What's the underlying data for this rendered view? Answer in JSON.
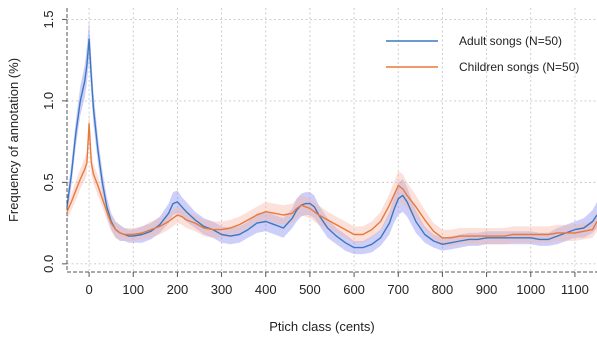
{
  "chart_data": {
    "type": "line",
    "title": "",
    "xlabel": "Ptich class (cents)",
    "ylabel": "Frequency of annotation (%)",
    "xlim": [
      -50,
      1150
    ],
    "ylim": [
      -0.05,
      1.57
    ],
    "x_ticks": [
      0,
      100,
      200,
      300,
      400,
      500,
      600,
      700,
      800,
      900,
      1000,
      1100
    ],
    "y_ticks": [
      0.0,
      0.5,
      1.0,
      1.5
    ],
    "y_tick_labels": [
      "0.0",
      "0.5",
      "1.0",
      "1.5"
    ],
    "grid": true,
    "legend_position": "top-right",
    "x": [
      -50,
      -40,
      -30,
      -20,
      -10,
      -5,
      0,
      5,
      10,
      20,
      30,
      40,
      50,
      60,
      70,
      80,
      90,
      100,
      120,
      140,
      160,
      180,
      190,
      200,
      210,
      220,
      240,
      260,
      280,
      300,
      320,
      340,
      360,
      380,
      400,
      420,
      440,
      460,
      470,
      480,
      490,
      500,
      510,
      520,
      540,
      560,
      580,
      600,
      620,
      640,
      660,
      680,
      690,
      700,
      710,
      720,
      740,
      760,
      780,
      800,
      820,
      840,
      860,
      880,
      900,
      920,
      940,
      960,
      980,
      1000,
      1020,
      1040,
      1060,
      1080,
      1100,
      1120,
      1140,
      1150
    ],
    "series": [
      {
        "name": "Adult songs (N=50)",
        "color": "#3a78c2",
        "band_color": "#8a8cf0",
        "values": [
          0.35,
          0.55,
          0.8,
          1.0,
          1.12,
          1.22,
          1.38,
          1.15,
          0.95,
          0.7,
          0.5,
          0.35,
          0.26,
          0.21,
          0.19,
          0.18,
          0.17,
          0.17,
          0.18,
          0.2,
          0.24,
          0.31,
          0.37,
          0.38,
          0.35,
          0.32,
          0.27,
          0.23,
          0.21,
          0.18,
          0.17,
          0.18,
          0.21,
          0.25,
          0.26,
          0.24,
          0.22,
          0.28,
          0.33,
          0.36,
          0.37,
          0.37,
          0.35,
          0.3,
          0.22,
          0.17,
          0.13,
          0.1,
          0.1,
          0.12,
          0.16,
          0.25,
          0.33,
          0.4,
          0.42,
          0.38,
          0.26,
          0.18,
          0.14,
          0.12,
          0.13,
          0.14,
          0.15,
          0.15,
          0.16,
          0.16,
          0.16,
          0.16,
          0.16,
          0.16,
          0.15,
          0.15,
          0.17,
          0.19,
          0.21,
          0.22,
          0.26,
          0.3
        ],
        "band_width": [
          0.06,
          0.07,
          0.08,
          0.09,
          0.1,
          0.11,
          0.12,
          0.11,
          0.1,
          0.08,
          0.07,
          0.06,
          0.05,
          0.05,
          0.05,
          0.04,
          0.04,
          0.04,
          0.05,
          0.05,
          0.05,
          0.06,
          0.07,
          0.07,
          0.06,
          0.06,
          0.05,
          0.05,
          0.05,
          0.05,
          0.05,
          0.05,
          0.05,
          0.06,
          0.06,
          0.06,
          0.06,
          0.06,
          0.07,
          0.07,
          0.07,
          0.07,
          0.07,
          0.06,
          0.06,
          0.05,
          0.05,
          0.04,
          0.04,
          0.05,
          0.05,
          0.07,
          0.08,
          0.1,
          0.1,
          0.09,
          0.07,
          0.05,
          0.04,
          0.04,
          0.04,
          0.04,
          0.04,
          0.04,
          0.04,
          0.04,
          0.04,
          0.04,
          0.04,
          0.04,
          0.04,
          0.04,
          0.05,
          0.05,
          0.05,
          0.06,
          0.07,
          0.08
        ]
      },
      {
        "name": "Children songs (N=50)",
        "color": "#e8793a",
        "band_color": "#f6b8a8",
        "values": [
          0.32,
          0.38,
          0.45,
          0.52,
          0.58,
          0.62,
          0.86,
          0.62,
          0.55,
          0.48,
          0.4,
          0.32,
          0.25,
          0.21,
          0.19,
          0.18,
          0.18,
          0.18,
          0.19,
          0.21,
          0.23,
          0.26,
          0.28,
          0.3,
          0.29,
          0.27,
          0.25,
          0.22,
          0.21,
          0.21,
          0.22,
          0.24,
          0.27,
          0.3,
          0.32,
          0.31,
          0.3,
          0.31,
          0.34,
          0.36,
          0.35,
          0.34,
          0.32,
          0.3,
          0.27,
          0.24,
          0.21,
          0.18,
          0.18,
          0.21,
          0.26,
          0.36,
          0.42,
          0.48,
          0.46,
          0.42,
          0.35,
          0.27,
          0.2,
          0.16,
          0.16,
          0.17,
          0.17,
          0.17,
          0.17,
          0.17,
          0.17,
          0.18,
          0.18,
          0.18,
          0.18,
          0.18,
          0.19,
          0.19,
          0.19,
          0.2,
          0.21,
          0.26
        ],
        "band_width": [
          0.05,
          0.05,
          0.06,
          0.06,
          0.07,
          0.07,
          0.08,
          0.07,
          0.06,
          0.06,
          0.05,
          0.05,
          0.05,
          0.05,
          0.04,
          0.04,
          0.04,
          0.04,
          0.04,
          0.05,
          0.05,
          0.05,
          0.05,
          0.05,
          0.05,
          0.05,
          0.05,
          0.05,
          0.05,
          0.05,
          0.05,
          0.05,
          0.05,
          0.05,
          0.06,
          0.06,
          0.06,
          0.06,
          0.06,
          0.06,
          0.06,
          0.06,
          0.06,
          0.06,
          0.05,
          0.05,
          0.05,
          0.05,
          0.05,
          0.05,
          0.06,
          0.07,
          0.08,
          0.09,
          0.09,
          0.08,
          0.07,
          0.06,
          0.05,
          0.05,
          0.05,
          0.05,
          0.05,
          0.05,
          0.05,
          0.05,
          0.05,
          0.05,
          0.05,
          0.05,
          0.05,
          0.05,
          0.05,
          0.05,
          0.05,
          0.05,
          0.05,
          0.06
        ]
      }
    ]
  }
}
